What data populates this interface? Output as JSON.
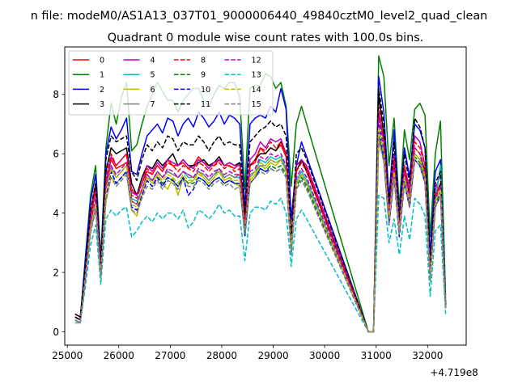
{
  "figure": {
    "suptitle": "n file: modeM0/AS1A13_037T01_9000006440_49840cztM0_level2_quad_clean",
    "title": "Quadrant 0 module wise count rates with 100.0s bins.",
    "offset_text": "+4.719e8"
  },
  "chart_data": {
    "type": "line",
    "title": "Quadrant 0 module wise count rates with 100.0s bins.",
    "xlabel": "",
    "ylabel": "",
    "x_offset": 471900000,
    "xlim": [
      24950,
      32750
    ],
    "ylim": [
      -0.45,
      9.6
    ],
    "xticks": [
      25000,
      26000,
      27000,
      28000,
      29000,
      30000,
      31000,
      32000
    ],
    "xtick_labels": [
      "25000",
      "26000",
      "27000",
      "28000",
      "29000",
      "30000",
      "31000",
      "32000"
    ],
    "yticks": [
      0,
      2,
      4,
      6,
      8
    ],
    "ytick_labels": [
      "0",
      "2",
      "4",
      "6",
      "8"
    ],
    "grid": false,
    "legend_placement": "top-left",
    "legend_columns": 4,
    "x": [
      25150,
      25250,
      25350,
      25450,
      25550,
      25650,
      25750,
      25850,
      25950,
      26050,
      26150,
      26250,
      26350,
      26450,
      26550,
      26650,
      26750,
      26850,
      26950,
      27050,
      27150,
      27250,
      27350,
      27450,
      27550,
      27650,
      27750,
      27850,
      27950,
      28050,
      28150,
      28250,
      28350,
      28450,
      28550,
      28650,
      28750,
      28850,
      28950,
      29050,
      29150,
      29250,
      29350,
      29450,
      29550,
      29650,
      30850,
      30950,
      31050,
      31150,
      31250,
      31350,
      31450,
      31550,
      31650,
      31750,
      31850,
      31950,
      32050,
      32150,
      32250,
      32350
    ],
    "series": [
      {
        "name": "0",
        "color": "#ff0000",
        "dash": "solid",
        "values": [
          0.5,
          0.4,
          2.0,
          4.0,
          5.0,
          2.2,
          5.0,
          5.8,
          5.5,
          5.6,
          5.7,
          4.8,
          4.6,
          5.0,
          5.4,
          5.3,
          5.6,
          5.4,
          5.8,
          5.6,
          5.6,
          5.7,
          5.5,
          5.6,
          5.9,
          5.7,
          5.6,
          5.6,
          5.8,
          5.6,
          5.6,
          5.5,
          5.7,
          3.8,
          5.6,
          5.7,
          6.2,
          6.0,
          6.2,
          6.1,
          6.3,
          5.9,
          3.2,
          5.6,
          5.8,
          5.5,
          0.0,
          0.0,
          6.6,
          5.8,
          4.2,
          5.6,
          4.0,
          5.4,
          4.6,
          5.8,
          5.6,
          5.1,
          2.0,
          4.5,
          5.0,
          0.9
        ]
      },
      {
        "name": "1",
        "color": "#008000",
        "dash": "solid",
        "values": [
          0.5,
          0.4,
          2.5,
          4.6,
          5.6,
          2.5,
          6.2,
          7.7,
          7.0,
          7.9,
          8.4,
          6.1,
          6.3,
          7.0,
          7.6,
          8.0,
          8.4,
          8.1,
          7.8,
          7.8,
          7.4,
          7.8,
          8.0,
          8.2,
          8.2,
          7.8,
          7.6,
          8.0,
          8.3,
          8.2,
          8.4,
          8.4,
          7.9,
          4.8,
          8.2,
          8.3,
          8.3,
          8.7,
          8.6,
          8.2,
          8.4,
          7.6,
          4.9,
          7.0,
          7.6,
          7.0,
          0.0,
          0.0,
          9.3,
          8.6,
          5.6,
          7.2,
          4.2,
          6.8,
          5.8,
          7.5,
          7.7,
          7.3,
          3.2,
          6.0,
          7.1,
          1.2
        ]
      },
      {
        "name": "2",
        "color": "#0000ff",
        "dash": "solid",
        "values": [
          0.5,
          0.4,
          2.4,
          4.4,
          5.3,
          2.3,
          6.0,
          6.9,
          6.5,
          6.8,
          7.2,
          5.4,
          5.3,
          6.0,
          6.6,
          6.8,
          7.0,
          6.7,
          7.2,
          7.1,
          6.6,
          7.0,
          7.2,
          6.9,
          7.4,
          7.2,
          6.9,
          7.1,
          7.4,
          7.0,
          7.3,
          7.2,
          7.0,
          4.2,
          7.0,
          7.2,
          7.3,
          7.2,
          7.6,
          7.4,
          8.2,
          7.5,
          3.8,
          5.6,
          6.4,
          5.9,
          0.0,
          0.0,
          8.6,
          7.4,
          4.5,
          6.8,
          3.9,
          6.2,
          5.2,
          7.0,
          6.8,
          6.2,
          2.6,
          5.4,
          5.8,
          1.0
        ]
      },
      {
        "name": "3",
        "color": "#000000",
        "dash": "solid",
        "values": [
          0.6,
          0.5,
          2.0,
          3.8,
          4.8,
          2.0,
          5.4,
          6.2,
          6.0,
          6.1,
          6.2,
          5.0,
          4.6,
          5.2,
          5.6,
          5.5,
          5.8,
          5.6,
          5.8,
          6.0,
          5.6,
          5.8,
          5.6,
          5.6,
          5.7,
          5.8,
          5.6,
          5.7,
          5.9,
          5.6,
          5.7,
          5.6,
          5.7,
          3.8,
          5.6,
          5.8,
          6.0,
          6.0,
          6.2,
          6.1,
          6.4,
          6.0,
          3.0,
          5.4,
          5.8,
          5.4,
          0.0,
          0.0,
          8.0,
          6.6,
          4.0,
          5.8,
          3.6,
          5.6,
          4.6,
          6.2,
          6.0,
          5.4,
          2.0,
          4.6,
          5.0,
          0.9
        ]
      },
      {
        "name": "4",
        "color": "#bf00bf",
        "dash": "solid",
        "values": [
          0.5,
          0.4,
          2.0,
          3.8,
          4.8,
          2.1,
          5.0,
          5.9,
          5.6,
          5.8,
          6.0,
          4.7,
          4.6,
          5.0,
          5.6,
          5.4,
          5.7,
          5.5,
          5.8,
          5.7,
          5.6,
          5.8,
          5.6,
          5.5,
          5.8,
          5.7,
          5.5,
          5.7,
          5.8,
          5.6,
          5.7,
          5.6,
          5.6,
          3.6,
          5.8,
          6.0,
          6.4,
          6.2,
          6.5,
          6.4,
          6.5,
          6.0,
          3.1,
          5.6,
          5.8,
          5.6,
          0.0,
          0.0,
          7.4,
          6.4,
          4.1,
          6.0,
          3.8,
          5.6,
          4.8,
          6.6,
          6.4,
          5.6,
          2.0,
          4.8,
          5.3,
          0.9
        ]
      },
      {
        "name": "5",
        "color": "#00bfbf",
        "dash": "solid",
        "values": [
          0.4,
          0.3,
          1.8,
          3.6,
          4.4,
          2.0,
          4.8,
          5.5,
          5.2,
          5.4,
          5.6,
          4.5,
          4.4,
          4.8,
          5.2,
          5.1,
          5.4,
          5.2,
          5.4,
          5.3,
          5.2,
          5.4,
          5.2,
          5.2,
          5.4,
          5.3,
          5.1,
          5.3,
          5.4,
          5.2,
          5.3,
          5.2,
          5.2,
          3.4,
          5.3,
          5.4,
          5.8,
          5.7,
          5.9,
          5.8,
          5.9,
          5.5,
          2.8,
          5.1,
          5.4,
          5.1,
          0.0,
          0.0,
          7.0,
          6.0,
          3.8,
          5.4,
          3.4,
          5.2,
          4.4,
          6.0,
          5.8,
          5.2,
          1.8,
          4.4,
          5.6,
          0.8
        ]
      },
      {
        "name": "6",
        "color": "#bfbf00",
        "dash": "solid",
        "values": [
          0.4,
          0.3,
          1.8,
          3.4,
          4.2,
          1.9,
          4.4,
          5.2,
          5.0,
          5.2,
          5.4,
          4.1,
          3.9,
          4.6,
          5.2,
          5.0,
          5.3,
          5.0,
          4.8,
          5.2,
          4.6,
          5.2,
          5.0,
          5.1,
          5.4,
          5.2,
          5.0,
          5.2,
          5.4,
          5.1,
          5.2,
          5.0,
          4.9,
          3.4,
          5.1,
          5.3,
          5.6,
          5.5,
          5.7,
          5.6,
          5.8,
          5.4,
          2.8,
          5.0,
          5.3,
          5.0,
          0.0,
          0.0,
          6.4,
          5.8,
          3.8,
          5.4,
          3.6,
          5.2,
          4.4,
          6.2,
          6.0,
          5.2,
          1.8,
          4.4,
          4.8,
          0.8
        ]
      },
      {
        "name": "7",
        "color": "#808080",
        "dash": "solid",
        "values": [
          0.4,
          0.3,
          1.8,
          3.4,
          4.2,
          1.9,
          4.8,
          5.6,
          5.2,
          5.4,
          5.6,
          4.4,
          4.3,
          4.8,
          5.3,
          5.1,
          5.4,
          5.2,
          5.4,
          5.3,
          5.2,
          5.4,
          5.3,
          5.2,
          5.4,
          5.3,
          5.1,
          5.3,
          5.5,
          5.2,
          5.3,
          5.2,
          5.3,
          3.4,
          5.2,
          5.4,
          5.6,
          5.6,
          5.8,
          5.7,
          5.8,
          5.4,
          2.8,
          5.0,
          5.3,
          5.0,
          0.0,
          0.0,
          6.6,
          5.8,
          3.8,
          5.4,
          3.4,
          5.2,
          4.4,
          6.0,
          5.8,
          5.2,
          1.8,
          4.4,
          4.8,
          0.8
        ]
      },
      {
        "name": "8",
        "color": "#ff0000",
        "dash": "dashed",
        "values": [
          0.5,
          0.4,
          2.0,
          3.8,
          4.8,
          2.1,
          5.2,
          6.0,
          5.6,
          5.8,
          6.0,
          4.6,
          4.5,
          5.0,
          5.5,
          5.3,
          5.6,
          5.4,
          5.7,
          5.6,
          5.4,
          5.6,
          5.5,
          5.4,
          5.7,
          5.6,
          5.4,
          5.6,
          5.7,
          5.5,
          5.6,
          5.4,
          5.5,
          3.6,
          5.6,
          5.8,
          6.2,
          6.1,
          6.4,
          6.2,
          6.4,
          6.0,
          3.0,
          5.4,
          5.7,
          5.4,
          0.0,
          0.0,
          7.6,
          6.4,
          4.0,
          5.8,
          3.6,
          5.6,
          4.6,
          6.4,
          6.2,
          5.6,
          2.0,
          4.6,
          5.0,
          0.9
        ]
      },
      {
        "name": "9",
        "color": "#008000",
        "dash": "dashed",
        "values": [
          0.4,
          0.3,
          1.8,
          3.4,
          4.2,
          1.9,
          4.6,
          5.4,
          5.0,
          5.2,
          5.4,
          4.2,
          4.1,
          4.6,
          5.1,
          4.9,
          5.2,
          5.0,
          5.2,
          5.1,
          4.9,
          5.2,
          5.0,
          5.0,
          5.2,
          5.1,
          4.9,
          5.1,
          5.2,
          5.0,
          5.1,
          5.0,
          5.0,
          3.3,
          5.0,
          5.2,
          5.5,
          5.4,
          5.6,
          5.5,
          5.6,
          5.3,
          2.7,
          4.9,
          5.2,
          4.9,
          0.0,
          0.0,
          6.6,
          5.8,
          3.7,
          5.3,
          3.4,
          5.1,
          4.3,
          5.9,
          5.7,
          5.1,
          1.8,
          4.3,
          4.7,
          0.8
        ]
      },
      {
        "name": "10",
        "color": "#0000ff",
        "dash": "dashed",
        "values": [
          0.4,
          0.3,
          1.8,
          3.4,
          4.2,
          1.9,
          4.6,
          5.4,
          5.0,
          5.2,
          5.4,
          4.2,
          4.1,
          4.6,
          5.1,
          4.9,
          5.2,
          4.9,
          5.2,
          5.1,
          4.9,
          5.2,
          4.6,
          4.8,
          5.2,
          5.1,
          4.9,
          5.1,
          5.2,
          5.0,
          5.1,
          5.0,
          5.0,
          3.2,
          5.0,
          5.2,
          5.5,
          5.4,
          5.5,
          5.4,
          5.5,
          5.2,
          2.6,
          4.8,
          5.1,
          4.8,
          0.0,
          0.0,
          7.0,
          5.8,
          3.6,
          5.2,
          3.2,
          5.0,
          4.2,
          5.8,
          5.6,
          5.0,
          1.8,
          4.2,
          4.6,
          0.8
        ]
      },
      {
        "name": "11",
        "color": "#000000",
        "dash": "dashed",
        "values": [
          0.5,
          0.4,
          2.2,
          4.1,
          5.0,
          2.2,
          5.8,
          6.6,
          6.4,
          6.5,
          6.6,
          5.4,
          5.1,
          5.8,
          6.3,
          6.1,
          6.4,
          6.2,
          6.6,
          6.5,
          6.1,
          6.4,
          6.3,
          6.3,
          6.6,
          6.4,
          6.1,
          6.4,
          6.6,
          6.3,
          6.4,
          6.3,
          6.3,
          4.0,
          6.4,
          6.6,
          6.8,
          6.9,
          7.1,
          6.9,
          7.0,
          6.6,
          3.2,
          6.0,
          6.2,
          5.8,
          0.0,
          0.0,
          8.2,
          7.0,
          4.3,
          6.4,
          3.8,
          6.0,
          5.0,
          7.2,
          6.9,
          6.2,
          2.2,
          5.0,
          5.4,
          0.9
        ]
      },
      {
        "name": "12",
        "color": "#bf00bf",
        "dash": "dashed",
        "values": [
          0.4,
          0.3,
          1.9,
          3.6,
          4.5,
          2.0,
          4.8,
          5.6,
          5.3,
          5.5,
          5.7,
          4.4,
          4.3,
          4.8,
          5.3,
          5.1,
          5.4,
          5.2,
          5.5,
          5.4,
          5.2,
          5.4,
          5.3,
          5.2,
          5.5,
          5.4,
          5.2,
          5.4,
          5.5,
          5.3,
          5.4,
          5.3,
          5.3,
          3.5,
          5.4,
          5.5,
          5.9,
          5.8,
          6.0,
          5.9,
          6.0,
          5.6,
          2.9,
          5.2,
          5.5,
          5.2,
          0.0,
          0.0,
          7.2,
          6.2,
          3.9,
          5.6,
          3.5,
          5.4,
          4.5,
          6.2,
          6.0,
          5.3,
          1.9,
          4.5,
          4.9,
          0.8
        ]
      },
      {
        "name": "13",
        "color": "#00bfbf",
        "dash": "dashed",
        "values": [
          0.3,
          0.3,
          1.5,
          2.9,
          3.6,
          1.6,
          3.8,
          4.1,
          3.9,
          4.1,
          4.2,
          3.2,
          3.4,
          3.7,
          3.9,
          3.7,
          4.0,
          3.8,
          4.0,
          4.0,
          3.8,
          4.1,
          3.5,
          3.7,
          4.1,
          4.0,
          3.8,
          4.0,
          4.3,
          4.0,
          4.1,
          3.9,
          3.9,
          2.4,
          4.0,
          4.2,
          4.2,
          4.1,
          4.4,
          4.3,
          4.5,
          4.0,
          2.2,
          3.8,
          4.1,
          3.8,
          0.0,
          0.0,
          4.6,
          4.5,
          3.0,
          3.8,
          2.6,
          3.9,
          3.1,
          4.5,
          4.3,
          3.9,
          1.2,
          3.4,
          3.6,
          0.6
        ]
      },
      {
        "name": "14",
        "color": "#bfbf00",
        "dash": "dashed",
        "values": [
          0.4,
          0.3,
          1.8,
          3.5,
          4.3,
          1.9,
          4.7,
          5.5,
          5.2,
          5.4,
          5.6,
          4.3,
          4.2,
          4.7,
          5.2,
          5.0,
          5.3,
          5.1,
          5.3,
          5.2,
          5.0,
          5.3,
          5.1,
          5.1,
          5.3,
          5.2,
          5.0,
          5.2,
          5.4,
          5.1,
          5.2,
          5.1,
          5.1,
          3.4,
          5.2,
          5.4,
          5.7,
          5.6,
          5.8,
          5.7,
          5.8,
          5.4,
          2.8,
          5.0,
          5.3,
          5.0,
          0.0,
          0.0,
          6.9,
          6.0,
          3.8,
          5.4,
          3.4,
          5.2,
          4.4,
          6.0,
          5.8,
          5.2,
          1.8,
          4.4,
          4.8,
          0.8
        ]
      },
      {
        "name": "15",
        "color": "#808080",
        "dash": "dashed",
        "values": [
          0.4,
          0.3,
          1.7,
          3.3,
          4.1,
          1.8,
          4.4,
          5.2,
          4.9,
          5.1,
          5.3,
          4.1,
          4.0,
          4.5,
          4.9,
          4.8,
          5.1,
          4.8,
          5.1,
          5.0,
          4.8,
          5.1,
          4.9,
          4.9,
          5.1,
          5.0,
          4.8,
          5.0,
          5.1,
          4.9,
          5.0,
          4.8,
          4.9,
          3.3,
          5.0,
          5.2,
          5.4,
          5.3,
          5.5,
          5.4,
          5.5,
          5.2,
          2.6,
          4.8,
          5.1,
          4.8,
          0.0,
          0.0,
          6.5,
          5.7,
          3.6,
          5.2,
          3.3,
          5.0,
          4.2,
          5.8,
          5.6,
          5.0,
          1.7,
          4.2,
          4.6,
          0.8
        ]
      }
    ]
  }
}
